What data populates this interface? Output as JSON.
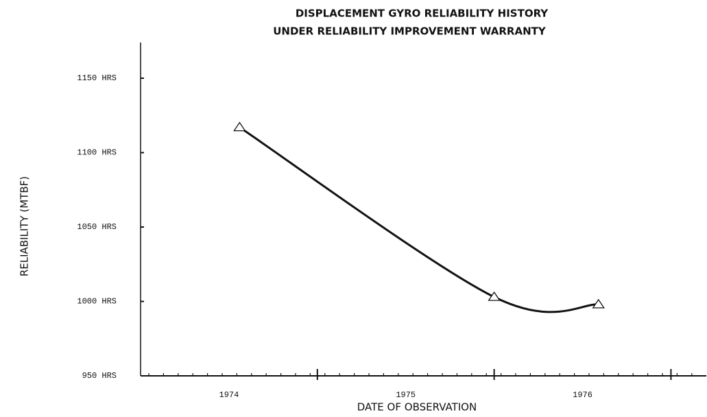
{
  "chart_data": {
    "type": "line",
    "title": "DISPLACEMENT GYRO RELIABILITY HISTORY",
    "subtitle": "UNDER RELIABILITY IMPROVEMENT WARRANTY",
    "xlabel": "DATE OF OBSERVATION",
    "ylabel": "RELIABILITY (MTBF)",
    "x": [
      1974.56,
      1976.0,
      1976.59
    ],
    "series": [
      {
        "name": "MTBF",
        "color": "#111111",
        "values": [
          1117,
          1003,
          998
        ]
      }
    ],
    "xlim": [
      1974,
      1977.2
    ],
    "xticks": [
      {
        "value": 1974.5,
        "label": "1974"
      },
      {
        "value": 1975.5,
        "label": "1975"
      },
      {
        "value": 1976.5,
        "label": "1976"
      }
    ],
    "xticks_major": [
      1975,
      1976,
      1977
    ],
    "ylim": [
      950,
      1165
    ],
    "yticks": [
      {
        "value": 950,
        "label": "950 HRS"
      },
      {
        "value": 1000,
        "label": "1000 HRS"
      },
      {
        "value": 1050,
        "label": "1050 HRS"
      },
      {
        "value": 1100,
        "label": "1100 HRS"
      },
      {
        "value": 1150,
        "label": "1150 HRS"
      }
    ]
  }
}
